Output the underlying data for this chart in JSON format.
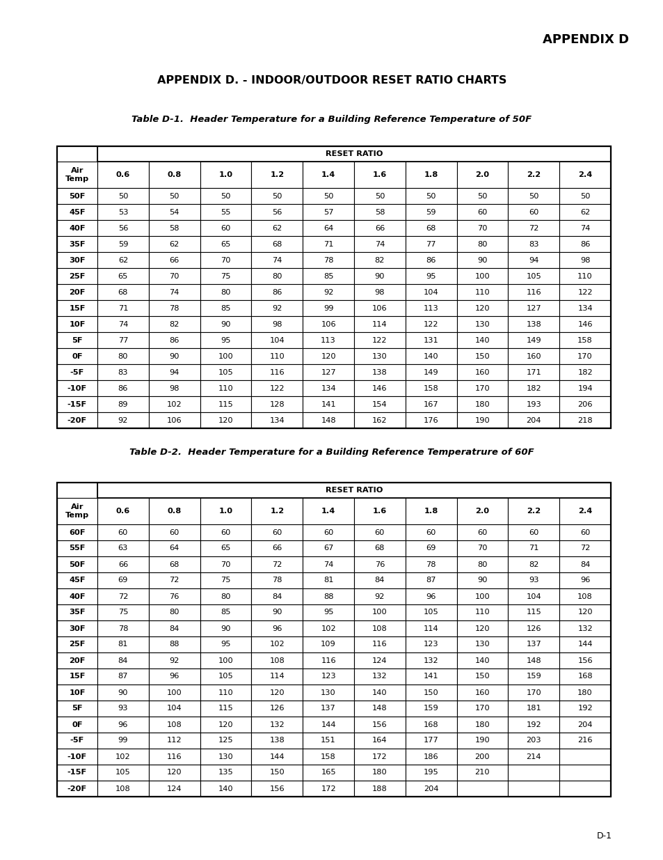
{
  "appendix_title": "APPENDIX D",
  "page_title": "APPENDIX D. - INDOOR/OUTDOOR RESET RATIO CHARTS",
  "table1_title": "Table D-1.  Header Temperature for a Building Reference Temperature of 50F",
  "table2_title": "Table D-2.  Header Temperature for a Building Reference Temperatrure of 60F",
  "page_number": "D-1",
  "reset_ratios": [
    "0.6",
    "0.8",
    "1.0",
    "1.2",
    "1.4",
    "1.6",
    "1.8",
    "2.0",
    "2.2",
    "2.4"
  ],
  "table1_rows": [
    [
      "50F",
      "50",
      "50",
      "50",
      "50",
      "50",
      "50",
      "50",
      "50",
      "50",
      "50"
    ],
    [
      "45F",
      "53",
      "54",
      "55",
      "56",
      "57",
      "58",
      "59",
      "60",
      "60",
      "62"
    ],
    [
      "40F",
      "56",
      "58",
      "60",
      "62",
      "64",
      "66",
      "68",
      "70",
      "72",
      "74"
    ],
    [
      "35F",
      "59",
      "62",
      "65",
      "68",
      "71",
      "74",
      "77",
      "80",
      "83",
      "86"
    ],
    [
      "30F",
      "62",
      "66",
      "70",
      "74",
      "78",
      "82",
      "86",
      "90",
      "94",
      "98"
    ],
    [
      "25F",
      "65",
      "70",
      "75",
      "80",
      "85",
      "90",
      "95",
      "100",
      "105",
      "110"
    ],
    [
      "20F",
      "68",
      "74",
      "80",
      "86",
      "92",
      "98",
      "104",
      "110",
      "116",
      "122"
    ],
    [
      "15F",
      "71",
      "78",
      "85",
      "92",
      "99",
      "106",
      "113",
      "120",
      "127",
      "134"
    ],
    [
      "10F",
      "74",
      "82",
      "90",
      "98",
      "106",
      "114",
      "122",
      "130",
      "138",
      "146"
    ],
    [
      "5F",
      "77",
      "86",
      "95",
      "104",
      "113",
      "122",
      "131",
      "140",
      "149",
      "158"
    ],
    [
      "0F",
      "80",
      "90",
      "100",
      "110",
      "120",
      "130",
      "140",
      "150",
      "160",
      "170"
    ],
    [
      "-5F",
      "83",
      "94",
      "105",
      "116",
      "127",
      "138",
      "149",
      "160",
      "171",
      "182"
    ],
    [
      "-10F",
      "86",
      "98",
      "110",
      "122",
      "134",
      "146",
      "158",
      "170",
      "182",
      "194"
    ],
    [
      "-15F",
      "89",
      "102",
      "115",
      "128",
      "141",
      "154",
      "167",
      "180",
      "193",
      "206"
    ],
    [
      "-20F",
      "92",
      "106",
      "120",
      "134",
      "148",
      "162",
      "176",
      "190",
      "204",
      "218"
    ]
  ],
  "table2_rows": [
    [
      "60F",
      "60",
      "60",
      "60",
      "60",
      "60",
      "60",
      "60",
      "60",
      "60",
      "60"
    ],
    [
      "55F",
      "63",
      "64",
      "65",
      "66",
      "67",
      "68",
      "69",
      "70",
      "71",
      "72"
    ],
    [
      "50F",
      "66",
      "68",
      "70",
      "72",
      "74",
      "76",
      "78",
      "80",
      "82",
      "84"
    ],
    [
      "45F",
      "69",
      "72",
      "75",
      "78",
      "81",
      "84",
      "87",
      "90",
      "93",
      "96"
    ],
    [
      "40F",
      "72",
      "76",
      "80",
      "84",
      "88",
      "92",
      "96",
      "100",
      "104",
      "108"
    ],
    [
      "35F",
      "75",
      "80",
      "85",
      "90",
      "95",
      "100",
      "105",
      "110",
      "115",
      "120"
    ],
    [
      "30F",
      "78",
      "84",
      "90",
      "96",
      "102",
      "108",
      "114",
      "120",
      "126",
      "132"
    ],
    [
      "25F",
      "81",
      "88",
      "95",
      "102",
      "109",
      "116",
      "123",
      "130",
      "137",
      "144"
    ],
    [
      "20F",
      "84",
      "92",
      "100",
      "108",
      "116",
      "124",
      "132",
      "140",
      "148",
      "156"
    ],
    [
      "15F",
      "87",
      "96",
      "105",
      "114",
      "123",
      "132",
      "141",
      "150",
      "159",
      "168"
    ],
    [
      "10F",
      "90",
      "100",
      "110",
      "120",
      "130",
      "140",
      "150",
      "160",
      "170",
      "180"
    ],
    [
      "5F",
      "93",
      "104",
      "115",
      "126",
      "137",
      "148",
      "159",
      "170",
      "181",
      "192"
    ],
    [
      "0F",
      "96",
      "108",
      "120",
      "132",
      "144",
      "156",
      "168",
      "180",
      "192",
      "204"
    ],
    [
      "-5F",
      "99",
      "112",
      "125",
      "138",
      "151",
      "164",
      "177",
      "190",
      "203",
      "216"
    ],
    [
      "-10F",
      "102",
      "116",
      "130",
      "144",
      "158",
      "172",
      "186",
      "200",
      "214",
      ""
    ],
    [
      "-15F",
      "105",
      "120",
      "135",
      "150",
      "165",
      "180",
      "195",
      "210",
      "",
      ""
    ],
    [
      "-20F",
      "108",
      "124",
      "140",
      "156",
      "172",
      "188",
      "204",
      "",
      "",
      ""
    ]
  ]
}
